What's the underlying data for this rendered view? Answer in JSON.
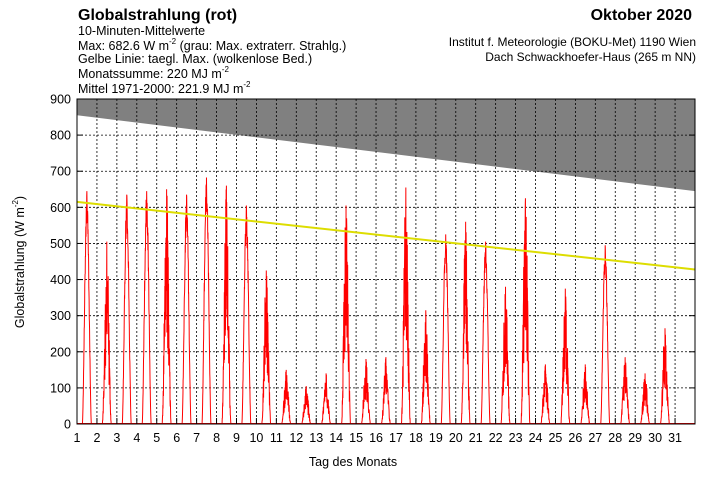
{
  "header": {
    "title": "Globalstrahlung (rot)",
    "month": "Oktober 2020",
    "subtitle": "10-Minuten-Mittelwerte",
    "max_line": {
      "prefix": "Max:  682.6 W m",
      "exp": "-2",
      "suffix": "  (grau: Max. extraterr. Strahlg.)"
    },
    "yellow_line": "Gelbe Linie: taegl. Max. (wolkenlose Bed.)",
    "sum_line": {
      "prefix": "Monatssumme:  220 MJ m",
      "exp": "-2"
    },
    "mean_line": {
      "prefix": "Mittel 1971-2000:  221.9 MJ m",
      "exp": "-2"
    },
    "institute": "Institut f. Meteorologie (BOKU-Met) 1190 Wien",
    "location": "Dach Schwackhoefer-Haus (265 m NN)"
  },
  "chart_data": {
    "type": "line",
    "xlabel": "Tag des Monats",
    "ylabel": {
      "prefix": "Globalstrahlung (W m",
      "exp": "-2",
      "suffix": ")"
    },
    "xlim": [
      1,
      32
    ],
    "ylim": [
      0,
      900
    ],
    "x_ticks": [
      1,
      2,
      3,
      4,
      5,
      6,
      7,
      8,
      9,
      10,
      11,
      12,
      13,
      14,
      15,
      16,
      17,
      18,
      19,
      20,
      21,
      22,
      23,
      24,
      25,
      26,
      27,
      28,
      29,
      30,
      31
    ],
    "y_ticks": [
      0,
      100,
      200,
      300,
      400,
      500,
      600,
      700,
      800,
      900
    ],
    "grid": true,
    "colors": {
      "measured": "#ff0000",
      "clear_sky": "#dddd00",
      "extraterrestrial": "#808080"
    },
    "extraterrestrial_max": {
      "x": [
        1,
        32
      ],
      "y": [
        855,
        645
      ]
    },
    "clear_sky_max": {
      "x": [
        1,
        32
      ],
      "y": [
        615,
        428
      ]
    },
    "daily_peaks": [
      645,
      505,
      635,
      645,
      650,
      635,
      682.6,
      660,
      605,
      425,
      150,
      105,
      140,
      605,
      180,
      185,
      655,
      315,
      525,
      560,
      505,
      380,
      625,
      165,
      375,
      165,
      495,
      185,
      140,
      265
    ],
    "monthly_max": 682.6
  }
}
